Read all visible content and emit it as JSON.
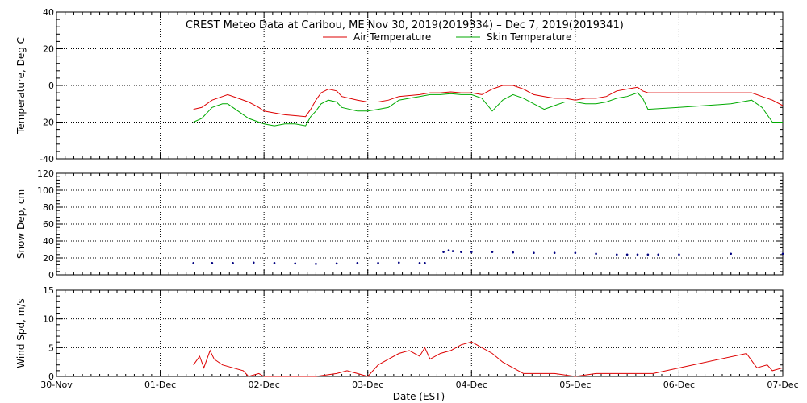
{
  "chart_data": {
    "title": "CREST Meteo Data at Caribou, ME    Nov 30, 2019(2019334) – Dec  7, 2019(2019341)",
    "xlabel": "Date (EST)",
    "x_ticks": [
      "30-Nov",
      "01-Dec",
      "02-Dec",
      "03-Dec",
      "04-Dec",
      "05-Dec",
      "06-Dec",
      "07-Dec"
    ],
    "x_range_days": [
      0,
      7
    ],
    "panels": [
      {
        "type": "line",
        "ylabel": "Temperature, Deg C",
        "ylim": [
          -40,
          40
        ],
        "yticks": [
          -40,
          -20,
          0,
          20,
          40
        ],
        "legend": "top-center",
        "series": [
          {
            "name": "Air Temperature",
            "color": "#dd0000",
            "points": [
              [
                1.32,
                -13
              ],
              [
                1.4,
                -12
              ],
              [
                1.5,
                -8
              ],
              [
                1.6,
                -6
              ],
              [
                1.65,
                -5
              ],
              [
                1.75,
                -7
              ],
              [
                1.85,
                -9
              ],
              [
                1.95,
                -12
              ],
              [
                2.0,
                -14
              ],
              [
                2.1,
                -15
              ],
              [
                2.2,
                -16
              ],
              [
                2.3,
                -16.5
              ],
              [
                2.4,
                -17
              ],
              [
                2.45,
                -13
              ],
              [
                2.5,
                -8
              ],
              [
                2.55,
                -4
              ],
              [
                2.62,
                -2
              ],
              [
                2.7,
                -3
              ],
              [
                2.75,
                -6
              ],
              [
                2.9,
                -8
              ],
              [
                3.0,
                -9
              ],
              [
                3.1,
                -9
              ],
              [
                3.2,
                -8
              ],
              [
                3.3,
                -6
              ],
              [
                3.5,
                -5
              ],
              [
                3.6,
                -4
              ],
              [
                3.7,
                -4
              ],
              [
                3.8,
                -3.5
              ],
              [
                3.9,
                -4
              ],
              [
                4.0,
                -4
              ],
              [
                4.1,
                -5
              ],
              [
                4.2,
                -2
              ],
              [
                4.3,
                0
              ],
              [
                4.4,
                0
              ],
              [
                4.5,
                -2
              ],
              [
                4.6,
                -5
              ],
              [
                4.7,
                -6
              ],
              [
                4.8,
                -7
              ],
              [
                4.9,
                -7
              ],
              [
                5.0,
                -8
              ],
              [
                5.1,
                -7
              ],
              [
                5.2,
                -7
              ],
              [
                5.3,
                -6
              ],
              [
                5.4,
                -3
              ],
              [
                5.5,
                -2
              ],
              [
                5.6,
                -1
              ],
              [
                5.65,
                -3
              ],
              [
                5.7,
                -4
              ],
              [
                6.0,
                -4
              ],
              [
                6.5,
                -4
              ],
              [
                6.7,
                -4
              ],
              [
                6.8,
                -6
              ],
              [
                6.9,
                -8
              ],
              [
                7.0,
                -11
              ]
            ]
          },
          {
            "name": "Skin Temperature",
            "color": "#00aa00",
            "points": [
              [
                1.32,
                -20
              ],
              [
                1.4,
                -18
              ],
              [
                1.5,
                -12
              ],
              [
                1.6,
                -10
              ],
              [
                1.65,
                -10
              ],
              [
                1.75,
                -14
              ],
              [
                1.85,
                -18
              ],
              [
                1.95,
                -20
              ],
              [
                2.0,
                -21
              ],
              [
                2.1,
                -22
              ],
              [
                2.2,
                -21
              ],
              [
                2.3,
                -21
              ],
              [
                2.4,
                -22
              ],
              [
                2.45,
                -17
              ],
              [
                2.5,
                -14
              ],
              [
                2.55,
                -10
              ],
              [
                2.62,
                -8
              ],
              [
                2.7,
                -9
              ],
              [
                2.75,
                -12
              ],
              [
                2.9,
                -14
              ],
              [
                3.0,
                -14
              ],
              [
                3.1,
                -13
              ],
              [
                3.2,
                -12
              ],
              [
                3.3,
                -8
              ],
              [
                3.5,
                -6
              ],
              [
                3.6,
                -5
              ],
              [
                3.7,
                -5
              ],
              [
                3.8,
                -4.5
              ],
              [
                3.9,
                -5
              ],
              [
                4.0,
                -5
              ],
              [
                4.1,
                -7
              ],
              [
                4.2,
                -14
              ],
              [
                4.3,
                -8
              ],
              [
                4.4,
                -5
              ],
              [
                4.5,
                -7
              ],
              [
                4.6,
                -10
              ],
              [
                4.7,
                -13
              ],
              [
                4.8,
                -11
              ],
              [
                4.9,
                -9
              ],
              [
                5.0,
                -9
              ],
              [
                5.1,
                -10
              ],
              [
                5.2,
                -10
              ],
              [
                5.3,
                -9
              ],
              [
                5.4,
                -7
              ],
              [
                5.5,
                -6
              ],
              [
                5.6,
                -4
              ],
              [
                5.65,
                -7
              ],
              [
                5.7,
                -13
              ],
              [
                6.0,
                -12
              ],
              [
                6.5,
                -10
              ],
              [
                6.7,
                -8
              ],
              [
                6.8,
                -12
              ],
              [
                6.9,
                -20
              ],
              [
                7.0,
                -20
              ]
            ]
          }
        ]
      },
      {
        "type": "scatter",
        "ylabel": "Snow Dep, cm",
        "ylim": [
          0,
          120
        ],
        "yticks": [
          0,
          20,
          40,
          60,
          80,
          100,
          120
        ],
        "series": [
          {
            "name": "",
            "color": "#000080",
            "points": [
              [
                1.32,
                14
              ],
              [
                1.5,
                14
              ],
              [
                1.7,
                14
              ],
              [
                1.9,
                14.5
              ],
              [
                2.1,
                14
              ],
              [
                2.3,
                13.5
              ],
              [
                2.5,
                13
              ],
              [
                2.7,
                13.5
              ],
              [
                2.9,
                14
              ],
              [
                3.1,
                14
              ],
              [
                3.3,
                14.5
              ],
              [
                3.5,
                14
              ],
              [
                3.55,
                14
              ],
              [
                3.73,
                27
              ],
              [
                3.78,
                29
              ],
              [
                3.82,
                28
              ],
              [
                3.9,
                27
              ],
              [
                4.0,
                27
              ],
              [
                4.2,
                27
              ],
              [
                4.4,
                26.5
              ],
              [
                4.6,
                26
              ],
              [
                4.8,
                26
              ],
              [
                5.0,
                26
              ],
              [
                5.2,
                25
              ],
              [
                5.4,
                24
              ],
              [
                5.5,
                24
              ],
              [
                5.6,
                24
              ],
              [
                5.7,
                24
              ],
              [
                5.8,
                24
              ],
              [
                6.0,
                24
              ],
              [
                6.5,
                25
              ],
              [
                7.0,
                25
              ]
            ]
          }
        ]
      },
      {
        "type": "line",
        "ylabel": "Wind Spd, m/s",
        "ylim": [
          0,
          15
        ],
        "yticks": [
          0,
          5,
          10,
          15
        ],
        "series": [
          {
            "name": "",
            "color": "#dd0000",
            "points": [
              [
                1.32,
                2
              ],
              [
                1.38,
                3.5
              ],
              [
                1.42,
                1.5
              ],
              [
                1.48,
                4.5
              ],
              [
                1.52,
                3
              ],
              [
                1.6,
                2
              ],
              [
                1.7,
                1.5
              ],
              [
                1.8,
                1
              ],
              [
                1.85,
                0
              ],
              [
                1.95,
                0.5
              ],
              [
                2.0,
                0
              ],
              [
                2.2,
                0
              ],
              [
                2.5,
                0
              ],
              [
                2.7,
                0.5
              ],
              [
                2.8,
                1
              ],
              [
                2.9,
                0.5
              ],
              [
                3.0,
                0
              ],
              [
                3.1,
                2
              ],
              [
                3.2,
                3
              ],
              [
                3.3,
                4
              ],
              [
                3.4,
                4.5
              ],
              [
                3.5,
                3.5
              ],
              [
                3.55,
                5
              ],
              [
                3.6,
                3
              ],
              [
                3.7,
                4
              ],
              [
                3.8,
                4.5
              ],
              [
                3.9,
                5.5
              ],
              [
                4.0,
                6
              ],
              [
                4.1,
                5
              ],
              [
                4.2,
                4
              ],
              [
                4.3,
                2.5
              ],
              [
                4.4,
                1.5
              ],
              [
                4.5,
                0.5
              ],
              [
                4.6,
                0.5
              ],
              [
                4.8,
                0.5
              ],
              [
                5.0,
                0
              ],
              [
                5.2,
                0.5
              ],
              [
                5.4,
                0.5
              ],
              [
                5.6,
                0.5
              ],
              [
                5.75,
                0.5
              ],
              [
                6.65,
                4
              ],
              [
                6.75,
                1.5
              ],
              [
                6.85,
                2
              ],
              [
                6.9,
                1
              ],
              [
                7.0,
                1.5
              ]
            ]
          }
        ]
      }
    ]
  }
}
